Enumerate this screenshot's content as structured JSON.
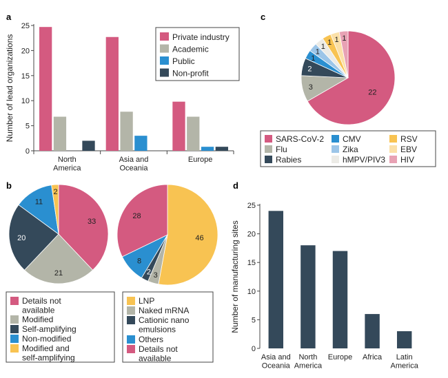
{
  "chart_data": [
    {
      "panel": "a",
      "type": "bar",
      "ylabel": "Number of lead organizations",
      "ylim": [
        0,
        25
      ],
      "yticks": [
        0,
        5,
        10,
        15,
        20,
        25
      ],
      "categories": [
        "North\nAmerica",
        "Asia and\nOceania",
        "Europe"
      ],
      "legend_position": "top-right",
      "series": [
        {
          "name": "Private industry",
          "color": "#d45a80",
          "values": [
            24.7,
            22.7,
            9.8
          ]
        },
        {
          "name": "Academic",
          "color": "#b3b5a8",
          "values": [
            6.8,
            7.8,
            6.8
          ]
        },
        {
          "name": "Public",
          "color": "#2a8fd0",
          "values": [
            0,
            3,
            0.8
          ]
        },
        {
          "name": "Non-profit",
          "color": "#34495a",
          "values": [
            2,
            0,
            0.8
          ]
        }
      ]
    },
    {
      "panel": "b",
      "type": "pie",
      "slices": [
        {
          "label": "Details not\navailable",
          "value": 33,
          "color": "#d45a80"
        },
        {
          "label": "Modified",
          "value": 21,
          "color": "#b3b5a8"
        },
        {
          "label": "Self-amplifying",
          "value": 20,
          "color": "#34495a"
        },
        {
          "label": "Non-modified",
          "value": 11,
          "color": "#2a8fd0"
        },
        {
          "label": "Modified and\nself-amplifying",
          "value": 2,
          "color": "#f8c352"
        }
      ]
    },
    {
      "panel": "b",
      "type": "pie",
      "slices": [
        {
          "label": "LNP",
          "value": 46,
          "color": "#f8c352"
        },
        {
          "label": "Naked mRNA",
          "value": 3,
          "color": "#b3b5a8"
        },
        {
          "label": "Cationic nano\nemulsions",
          "value": 2,
          "color": "#34495a"
        },
        {
          "label": "Others",
          "value": 8,
          "color": "#2a8fd0"
        },
        {
          "label": "Details not\navailable",
          "value": 28,
          "color": "#d45a80"
        }
      ]
    },
    {
      "panel": "c",
      "type": "pie",
      "slices": [
        {
          "label": "SARS-CoV-2",
          "value": 22,
          "color": "#d45a80"
        },
        {
          "label": "Flu",
          "value": 3,
          "color": "#b3b5a8"
        },
        {
          "label": "Rabies",
          "value": 2,
          "color": "#34495a"
        },
        {
          "label": "CMV",
          "value": 1,
          "color": "#2a8fd0"
        },
        {
          "label": "Zika",
          "value": 1,
          "color": "#9cc5e8"
        },
        {
          "label": "hMPV/PIV3",
          "value": 1,
          "color": "#ecebe6"
        },
        {
          "label": "RSV",
          "value": 1,
          "color": "#f8c352"
        },
        {
          "label": "EBV",
          "value": 1,
          "color": "#fbe0a8"
        },
        {
          "label": "HIV",
          "value": 1,
          "color": "#e8a2b4"
        }
      ]
    },
    {
      "panel": "d",
      "type": "bar",
      "ylabel": "Number of manufacturing sites",
      "ylim": [
        0,
        25
      ],
      "yticks": [
        0,
        5,
        10,
        15,
        20,
        25
      ],
      "categories": [
        "Asia and\nOceania",
        "North\nAmerica",
        "Europe",
        "Africa",
        "Latin\nAmerica"
      ],
      "series": [
        {
          "color": "#34495a",
          "values": [
            24,
            18,
            17,
            6,
            3
          ]
        }
      ]
    }
  ],
  "panel_labels": {
    "a": "a",
    "b": "b",
    "c": "c",
    "d": "d"
  }
}
